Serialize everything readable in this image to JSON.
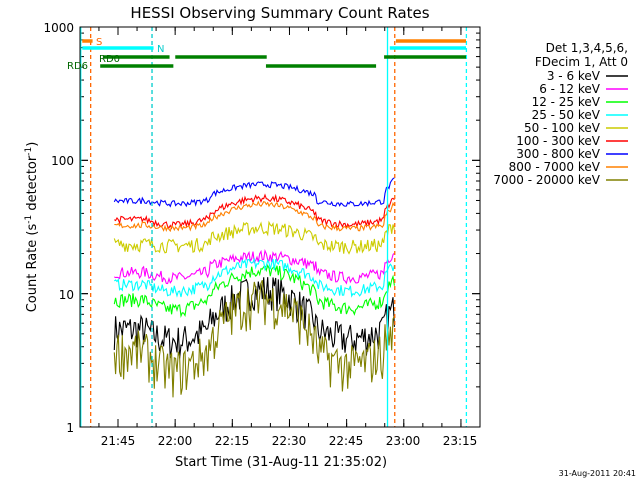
{
  "chart_data": {
    "type": "line",
    "title": "HESSI Observing Summary Count Rates",
    "xlabel": "Start Time (31-Aug-11 21:35:02)",
    "ylabel_main": "Count Rate (s",
    "ylabel_sup1": "-1",
    "ylabel_mid": " detector",
    "ylabel_sup2": "-1",
    "ylabel_end": ")",
    "x_axis": {
      "range_minutes_after_start": [
        0,
        104.97
      ],
      "ticks": [
        "21:45",
        "22:00",
        "22:15",
        "22:30",
        "22:45",
        "23:00",
        "23:15"
      ]
    },
    "y_axis": {
      "scale": "log",
      "range": [
        1,
        1000
      ],
      "ticks": [
        "1",
        "10",
        "100",
        "1000"
      ]
    },
    "legend": {
      "placement": "right",
      "header": [
        "Det 1,3,4,5,6,",
        "FDecim 1, Att 0"
      ]
    },
    "series": [
      {
        "name": "3 - 6 keV",
        "color": "#000000"
      },
      {
        "name": "6 - 12 keV",
        "color": "#ff00ff"
      },
      {
        "name": "12 - 25 keV",
        "color": "#00ff00"
      },
      {
        "name": "25 - 50 keV",
        "color": "#00ffff"
      },
      {
        "name": "50 - 100 keV",
        "color": "#cccc00"
      },
      {
        "name": "100 - 300 keV",
        "color": "#ff0000"
      },
      {
        "name": "300 - 800 keV",
        "color": "#0000ff"
      },
      {
        "name": "800 - 7000 keV",
        "color": "#ff8000"
      },
      {
        "name": "7000 - 20000 keV",
        "color": "#808000"
      }
    ],
    "flags": [
      {
        "label": "S",
        "color": "#ff6600"
      },
      {
        "label": "N",
        "color": "#00cccc"
      },
      {
        "label": "RD0",
        "color": "#006600"
      },
      {
        "label": "RD6",
        "color": "#006600"
      }
    ],
    "timestamp": "31-Aug-2011 20:41"
  }
}
